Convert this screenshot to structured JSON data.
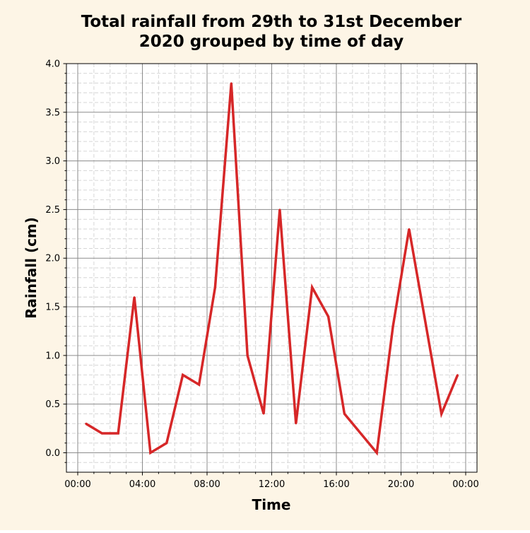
{
  "background_color": "#fdf5e6",
  "line_color": "#d62728",
  "chart_data": {
    "type": "line",
    "title_lines": [
      "Total rainfall from 29th to 31st December",
      "2020 grouped by time of day"
    ],
    "xlabel": "Time",
    "ylabel": "Rainfall (cm)",
    "x_unit": "hours",
    "xlim": [
      -0.7,
      24.7
    ],
    "ylim": [
      -0.2,
      4.0
    ],
    "x_ticks": [
      0,
      4,
      8,
      12,
      16,
      20,
      24
    ],
    "x_tick_labels": [
      "00:00",
      "04:00",
      "08:00",
      "12:00",
      "16:00",
      "20:00",
      "00:00"
    ],
    "y_ticks": [
      0.0,
      0.5,
      1.0,
      1.5,
      2.0,
      2.5,
      3.0,
      3.5,
      4.0
    ],
    "y_tick_labels": [
      "0.0",
      "0.5",
      "1.0",
      "1.5",
      "2.0",
      "2.5",
      "3.0",
      "3.5",
      "4.0"
    ],
    "grid": true,
    "series": [
      {
        "x": [
          0.5,
          1.5,
          2.5,
          3.5,
          4.5,
          5.5,
          6.5,
          7.5,
          8.5,
          9.5,
          10.5,
          11.5,
          12.5,
          13.5,
          14.5,
          15.5,
          16.5,
          18.5,
          19.5,
          20.5,
          22.5,
          23.5
        ],
        "values": [
          0.3,
          0.2,
          0.2,
          1.6,
          0.0,
          0.1,
          0.8,
          0.7,
          1.7,
          3.8,
          1.0,
          0.4,
          2.5,
          0.3,
          1.7,
          1.4,
          0.4,
          0.0,
          1.3,
          2.3,
          0.4,
          0.8
        ]
      }
    ]
  }
}
